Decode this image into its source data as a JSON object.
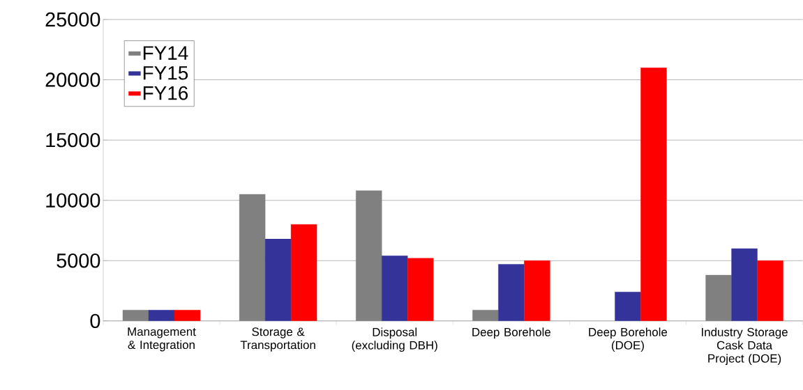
{
  "chart_data": {
    "type": "bar",
    "categories": [
      "Management & Integration",
      "Storage & Transportation",
      "Disposal (excluding DBH)",
      "Deep Borehole",
      "Deep Borehole (DOE)",
      "Industry Storage Cask Data Project (DOE)"
    ],
    "series": [
      {
        "name": "FY14",
        "color": "#808080",
        "values": [
          900,
          10500,
          10800,
          900,
          null,
          3800
        ]
      },
      {
        "name": "FY15",
        "color": "#333399",
        "values": [
          900,
          6800,
          5400,
          4700,
          2400,
          6000
        ]
      },
      {
        "name": "FY16",
        "color": "#ff0000",
        "values": [
          900,
          8000,
          5200,
          5000,
          21000,
          5000
        ]
      }
    ],
    "ylim": [
      0,
      25000
    ],
    "yticks": [
      0,
      5000,
      10000,
      15000,
      20000,
      25000
    ],
    "grid": "y",
    "legend": "top left"
  }
}
